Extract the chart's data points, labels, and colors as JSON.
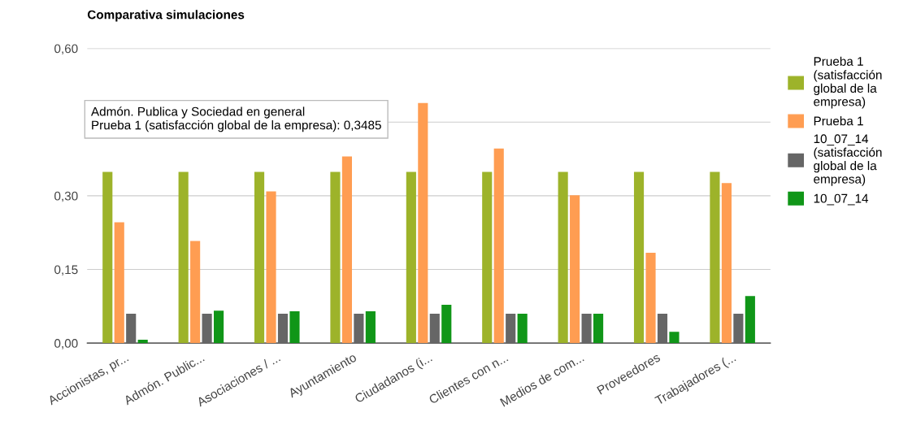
{
  "chart_data": {
    "type": "bar",
    "title": "Comparativa simulaciones",
    "categories": [
      "Accionistas, pr...",
      "Admón. Public...",
      "Asociaciones / ...",
      "Ayuntamiento",
      "Ciudadanos (i...",
      "Clientes con n...",
      "Medios de com...",
      "Proveedores",
      "Trabajadores (..."
    ],
    "series": [
      {
        "name": "Prueba 1 (satisfacción global de la empresa)",
        "color": "#9db32a",
        "values": [
          0.3485,
          0.3485,
          0.3485,
          0.3485,
          0.3485,
          0.3485,
          0.3485,
          0.3485,
          0.3485
        ]
      },
      {
        "name": "Prueba 1",
        "color": "#ff9d52",
        "values": [
          0.246,
          0.208,
          0.309,
          0.38,
          0.489,
          0.396,
          0.301,
          0.184,
          0.326
        ]
      },
      {
        "name": "10_07_14 (satisfacción global de la empresa)",
        "color": "#666666",
        "values": [
          0.06,
          0.06,
          0.06,
          0.06,
          0.06,
          0.06,
          0.06,
          0.06,
          0.06
        ]
      },
      {
        "name": "10_07_14",
        "color": "#109618",
        "values": [
          0.007,
          0.066,
          0.065,
          0.065,
          0.078,
          0.06,
          0.06,
          0.023,
          0.096
        ]
      }
    ],
    "ylim": [
      0,
      0.6
    ],
    "yticks": [
      {
        "value": 0,
        "label": "0,00"
      },
      {
        "value": 0.15,
        "label": "0,15"
      },
      {
        "value": 0.3,
        "label": "0,30"
      },
      {
        "value": 0.45,
        "label": null
      },
      {
        "value": 0.6,
        "label": "0,60"
      }
    ],
    "grid": "y",
    "legend": "right",
    "annotations": [
      "Admón. Publica y Sociedad en general\nPrueba 1 (satisfacción global de la empresa): 0,3485"
    ]
  }
}
